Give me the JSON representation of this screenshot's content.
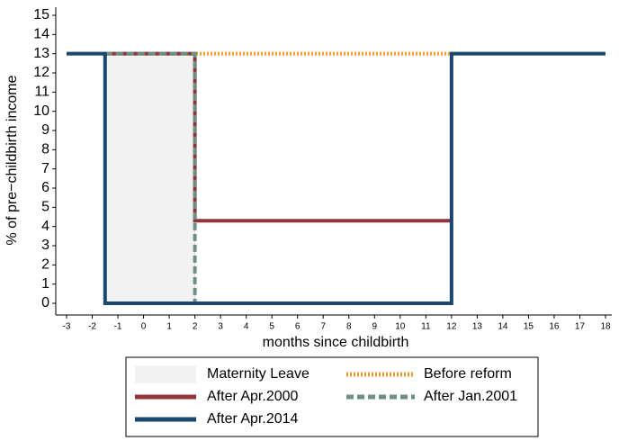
{
  "chart_data": {
    "type": "line",
    "ylabel": "% of pre−childbirth income",
    "xlabel": "months since childbirth",
    "xlim": [
      -3,
      18
    ],
    "xticks": [
      -3,
      -2,
      -1,
      0,
      1,
      2,
      3,
      4,
      5,
      6,
      7,
      8,
      9,
      10,
      11,
      12,
      13,
      14,
      15,
      16,
      17,
      18
    ],
    "ylim": [
      0,
      15
    ],
    "yticks": [
      0,
      1,
      2,
      3,
      4,
      5,
      6,
      7,
      8,
      9,
      10,
      11,
      12,
      13,
      14,
      15
    ],
    "legend": "bottom",
    "series": [
      {
        "name": "Maternity Leave",
        "color": "#f2f2f2",
        "style": "area",
        "x": [
          -1.5,
          2
        ],
        "values": [
          13,
          13
        ]
      },
      {
        "name": "Before reform",
        "color": "#e8a030",
        "style": "dotted",
        "x": [
          -3,
          12
        ],
        "values": [
          13,
          13
        ]
      },
      {
        "name": "After Apr.2000",
        "color": "#90353b",
        "style": "solid",
        "x": [
          -1.5,
          2,
          2,
          12
        ],
        "values": [
          13,
          13,
          4.3,
          4.3
        ]
      },
      {
        "name": "After Jan.2001",
        "color": "#6e8e84",
        "style": "dashed",
        "x": [
          -1.5,
          2,
          2
        ],
        "values": [
          13,
          13,
          0
        ]
      },
      {
        "name": "After Apr.2014",
        "color": "#1a476f",
        "style": "solid",
        "x": [
          -3,
          -1.5,
          -1.5,
          12,
          12,
          18
        ],
        "values": [
          13,
          13,
          0,
          0,
          13,
          13
        ]
      }
    ]
  }
}
